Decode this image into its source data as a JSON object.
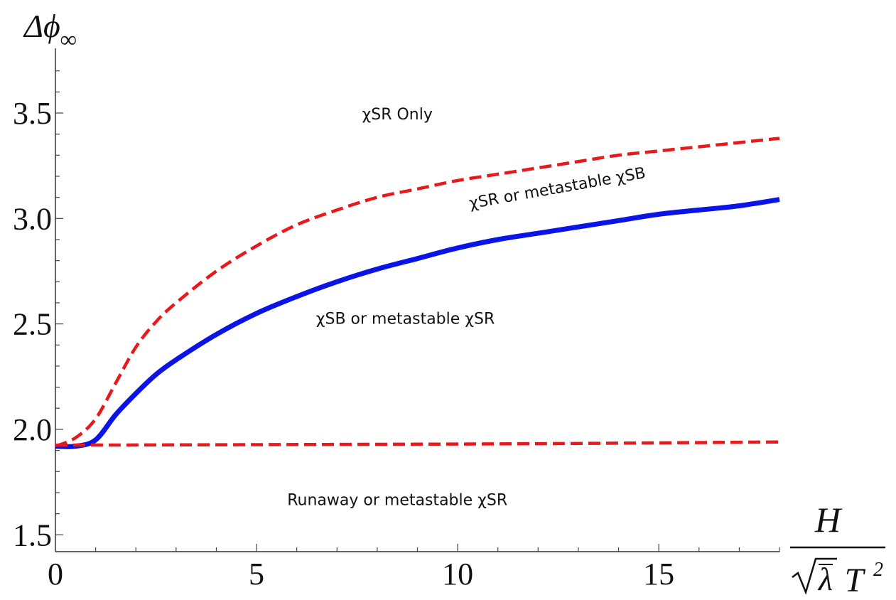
{
  "chart_data": {
    "type": "line",
    "xlim": [
      0,
      18
    ],
    "ylim": [
      1.42,
      3.8
    ],
    "x_ticks": [
      0,
      5,
      10,
      15
    ],
    "x_tick_labels": [
      "0",
      "5",
      "10",
      "15"
    ],
    "y_ticks": [
      1.5,
      2.0,
      2.5,
      3.0,
      3.5
    ],
    "y_tick_labels": [
      "1.5",
      "2.0",
      "2.5",
      "3.0",
      "3.5"
    ],
    "grid": false,
    "ylabel": {
      "delta": "Δ",
      "phi": "ϕ",
      "sub": "∞"
    },
    "xlabel": {
      "numerator": "H",
      "lambda": "λ",
      "T": "T",
      "exp": "2"
    },
    "series": [
      {
        "style": "dashed",
        "color": "#e8191c",
        "x": [
          0,
          0.5,
          1,
          1.5,
          2,
          2.5,
          3,
          4,
          5,
          6,
          7,
          8,
          9,
          10,
          11,
          12,
          13,
          14,
          15,
          16,
          17,
          18
        ],
        "values": [
          1.92,
          1.96,
          2.05,
          2.22,
          2.39,
          2.51,
          2.6,
          2.75,
          2.87,
          2.97,
          3.04,
          3.1,
          3.14,
          3.18,
          3.21,
          3.24,
          3.27,
          3.3,
          3.32,
          3.34,
          3.36,
          3.38
        ]
      },
      {
        "style": "solid",
        "color": "#0a14e6",
        "x": [
          0,
          0.5,
          1,
          1.5,
          2,
          2.5,
          3,
          4,
          5,
          6,
          7,
          8,
          9,
          10,
          11,
          12,
          13,
          14,
          15,
          16,
          17,
          18
        ],
        "values": [
          1.92,
          1.92,
          1.95,
          2.07,
          2.17,
          2.26,
          2.33,
          2.45,
          2.55,
          2.63,
          2.7,
          2.76,
          2.81,
          2.86,
          2.9,
          2.93,
          2.96,
          2.99,
          3.02,
          3.04,
          3.06,
          3.09
        ]
      },
      {
        "style": "dashed",
        "color": "#e8191c",
        "x": [
          0,
          6,
          12,
          18
        ],
        "values": [
          1.925,
          1.928,
          1.932,
          1.94
        ]
      }
    ],
    "annotations": [
      {
        "text": "χSR Only",
        "x": 8.5,
        "y": 3.47
      },
      {
        "text": "χSR or metastable χSB",
        "x": 12.5,
        "y": 3.12,
        "rotate": -10
      },
      {
        "text": "χSB or metastable χSR",
        "x": 8.7,
        "y": 2.5
      },
      {
        "text": "Runaway or metastable χSR",
        "x": 8.5,
        "y": 1.64
      }
    ]
  }
}
